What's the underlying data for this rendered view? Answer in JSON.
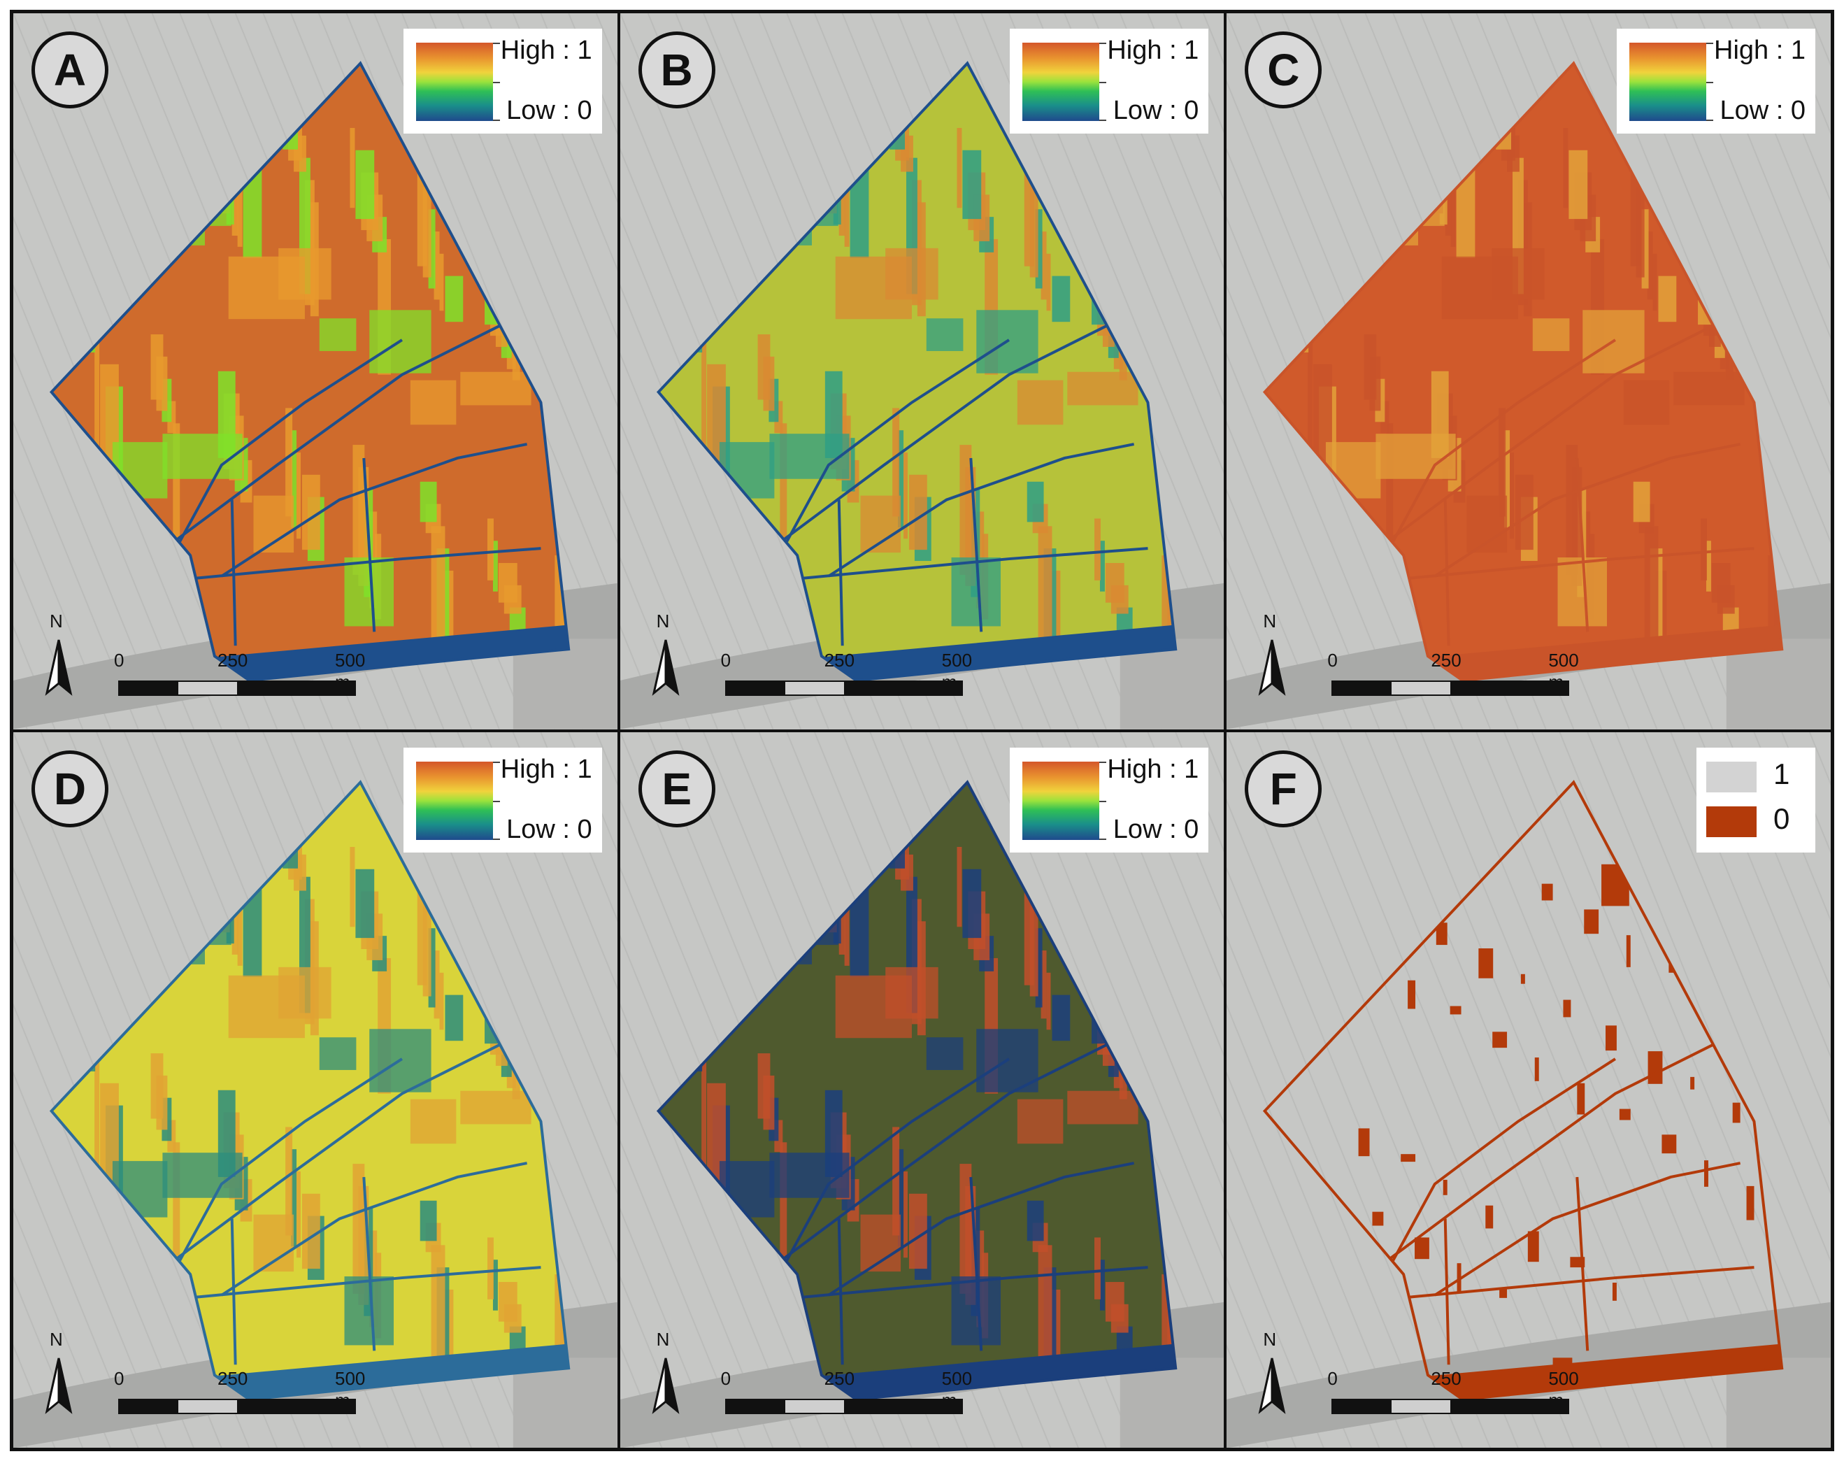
{
  "panels": [
    {
      "id": "A",
      "legend": {
        "type": "ramp",
        "high": "High : 1",
        "low": "Low : 0"
      },
      "scale": {
        "t0": "0",
        "t1": "250",
        "t2": "500 m"
      },
      "north": "N",
      "style": {
        "base": "#cf6b2c",
        "secondary": "#e89a2e",
        "accent": "#7fe22a",
        "edge": "#1e4f8c"
      }
    },
    {
      "id": "B",
      "legend": {
        "type": "ramp",
        "high": "High : 1",
        "low": "Low : 0"
      },
      "scale": {
        "t0": "0",
        "t1": "250",
        "t2": "500 m"
      },
      "north": "N",
      "style": {
        "base": "#b6c23a",
        "secondary": "#d98a33",
        "accent": "#2f9f86",
        "edge": "#1e4f8c"
      }
    },
    {
      "id": "C",
      "legend": {
        "type": "ramp",
        "high": "High : 1",
        "low": "Low : 0"
      },
      "scale": {
        "t0": "0",
        "t1": "250",
        "t2": "500 m"
      },
      "north": "N",
      "style": {
        "base": "#d05a2b",
        "secondary": "#c9542a",
        "accent": "#e3a23a",
        "edge": "#c9542a"
      }
    },
    {
      "id": "D",
      "legend": {
        "type": "ramp",
        "high": "High : 1",
        "low": "Low : 0"
      },
      "scale": {
        "t0": "0",
        "t1": "250",
        "t2": "500 m"
      },
      "north": "N",
      "style": {
        "base": "#d9d43a",
        "secondary": "#e0a334",
        "accent": "#2c8d7e",
        "edge": "#2c6c9a"
      }
    },
    {
      "id": "E",
      "legend": {
        "type": "ramp",
        "high": "High : 1",
        "low": "Low : 0"
      },
      "scale": {
        "t0": "0",
        "t1": "250",
        "t2": "500 m"
      },
      "north": "N",
      "style": {
        "base": "#4f5a2e",
        "secondary": "#c24f2a",
        "accent": "#1b3f7c",
        "edge": "#1b3f7c"
      }
    },
    {
      "id": "F",
      "legend": {
        "type": "binary",
        "items": [
          {
            "label": "1",
            "color": "#d3d3d3"
          },
          {
            "label": "0",
            "color": "#b33a0a"
          }
        ]
      },
      "scale": {
        "t0": "0",
        "t1": "250",
        "t2": "500 m"
      },
      "north": "N",
      "style": {
        "base": "none",
        "secondary": "#b33a0a",
        "accent": "#b33a0a",
        "edge": "#b33a0a"
      }
    }
  ]
}
